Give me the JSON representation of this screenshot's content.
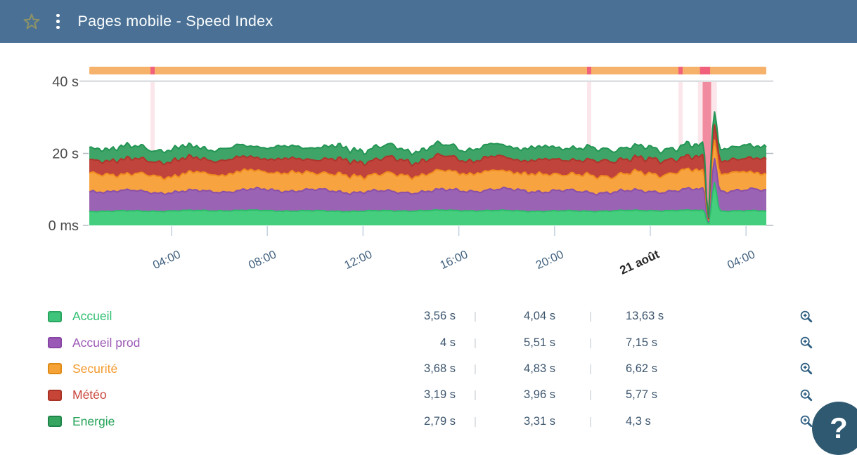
{
  "header": {
    "title": "Pages mobile - Speed Index",
    "bg_color": "#4a7195",
    "star_color": "#8e9366"
  },
  "help_button": {
    "label": "?",
    "bg_color": "#2f5970"
  },
  "chart_data": {
    "type": "area",
    "stacked": true,
    "title": "Pages mobile - Speed Index",
    "unit": "seconds",
    "ylim_s": [
      0,
      40
    ],
    "grid": "top-line-only",
    "y_ticks": [
      {
        "label": "40 s",
        "value_s": 40
      },
      {
        "label": "20 s",
        "value_s": 20
      },
      {
        "label": "0 ms",
        "value_s": 0
      }
    ],
    "x_ticks": [
      {
        "label": "04:00",
        "emphasized": false
      },
      {
        "label": "08:00",
        "emphasized": false
      },
      {
        "label": "12:00",
        "emphasized": false
      },
      {
        "label": "16:00",
        "emphasized": false
      },
      {
        "label": "20:00",
        "emphasized": false
      },
      {
        "label": "21 août",
        "emphasized": true
      },
      {
        "label": "04:00",
        "emphasized": false
      }
    ],
    "series": [
      {
        "name": "Accueil",
        "fill": "#45ce7d",
        "stroke": "#2dbd69",
        "stack_value_s": 4.04,
        "spike_add_s": 8.0
      },
      {
        "name": "Accueil prod",
        "fill": "#9a63b4",
        "stroke": "#8a4fa8",
        "stack_value_s": 5.51,
        "spike_add_s": 1.2
      },
      {
        "name": "Securité",
        "fill": "#f7a33f",
        "stroke": "#ef8d1f",
        "stack_value_s": 4.83,
        "spike_add_s": 0.4
      },
      {
        "name": "Météo",
        "fill": "#c0443c",
        "stroke": "#ae352c",
        "stack_value_s": 3.96,
        "spike_add_s": 0.3
      },
      {
        "name": "Energie",
        "fill": "#3fa468",
        "stroke": "#229553",
        "stack_value_s": 3.31,
        "spike_add_s": 0.6
      }
    ],
    "availability_strip": {
      "color": "#f6b26b",
      "incident_color": "#f2617c"
    },
    "incidents": {
      "minor_t": [
        0.0935,
        0.7383,
        0.8733
      ],
      "major": {
        "band_t": [
          0.899,
          0.927
        ],
        "core_t": [
          0.906,
          0.9185
        ],
        "strip_t": [
          0.902,
          0.917
        ],
        "dip_t": 0.914,
        "spike_t": 0.9235
      },
      "band_color": "#fbe7eb",
      "core_color": "#f18ba0"
    }
  },
  "legend": {
    "separator": "|",
    "zoom_icon_color": "#2d5d80",
    "rows": [
      {
        "name": "Accueil",
        "swatch_fill": "#3ec57b",
        "swatch_border": "#2aa55f",
        "label_color": "#2fbf71",
        "values": [
          "3,56 s",
          "4,04 s",
          "13,63 s"
        ]
      },
      {
        "name": "Accueil prod",
        "swatch_fill": "#9b59b6",
        "swatch_border": "#8745a5",
        "label_color": "#9b59b6",
        "values": [
          "4 s",
          "5,51 s",
          "7,15 s"
        ]
      },
      {
        "name": "Securité",
        "swatch_fill": "#f5a237",
        "swatch_border": "#e08a16",
        "label_color": "#f49a2c",
        "values": [
          "3,68 s",
          "4,83 s",
          "6,62 s"
        ]
      },
      {
        "name": "Météo",
        "swatch_fill": "#c74537",
        "swatch_border": "#a93226",
        "label_color": "#c9443a",
        "values": [
          "3,19 s",
          "3,96 s",
          "5,77 s"
        ]
      },
      {
        "name": "Energie",
        "swatch_fill": "#35a55f",
        "swatch_border": "#1e8449",
        "label_color": "#27a35a",
        "values": [
          "2,79 s",
          "3,31 s",
          "4,3 s"
        ]
      }
    ]
  }
}
